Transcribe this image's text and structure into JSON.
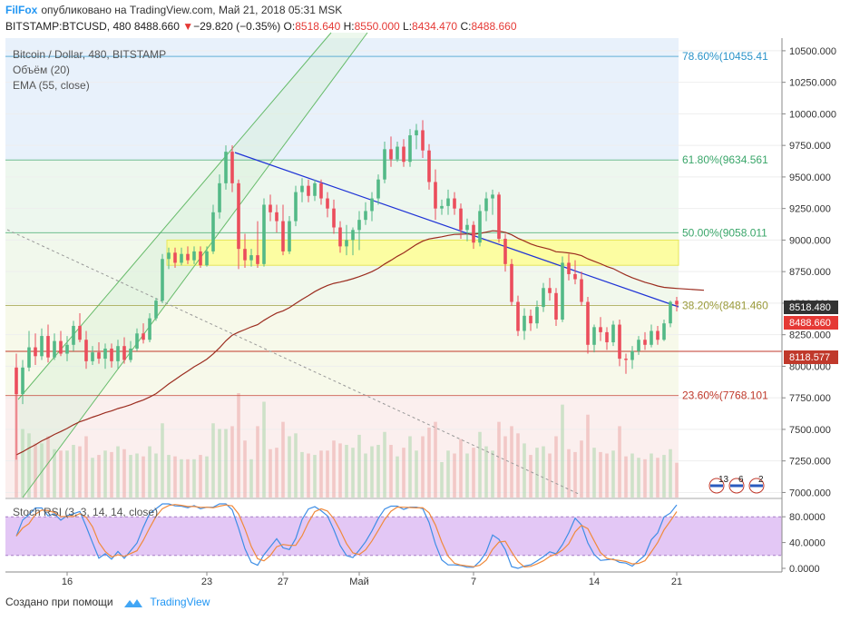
{
  "header": {
    "brand": "FilFox",
    "published": "опубликовано на TradingView.com, Май 21, 2018 05:31 MSK",
    "symbol": "BITSTAMP:BTCUSD, 480",
    "last": "8488.660",
    "change_arrow": "▼",
    "change": "−29.820 (−0.35%)",
    "open_label": "O:",
    "open": "8518.640",
    "high_label": "H:",
    "high": "8550.000",
    "low_label": "L:",
    "low": "8434.470",
    "close_label": "C:",
    "close": "8488.660"
  },
  "legend": {
    "main": "Bitcoin / Dollar, 480, BITSTAMP",
    "volume": "Объём (20)",
    "ema": "EMA (55, close)",
    "rsi": "Stoch RSI (3, 3, 14, 14, close)"
  },
  "footer": {
    "created": "Создано при помощи",
    "tv": "TradingView"
  },
  "badges": [
    "13",
    "6",
    "2"
  ],
  "chart_data": {
    "type": "candlestick",
    "y_ticks": [
      "10500.000",
      "10250.000",
      "10000.000",
      "9750.000",
      "9500.000",
      "9250.000",
      "9000.000",
      "8750.000",
      "8500.000",
      "8250.000",
      "8000.000",
      "7750.000",
      "7500.000",
      "7250.000",
      "7000.000"
    ],
    "ylim": [
      6960,
      10600
    ],
    "x_ticks": [
      "16",
      "23",
      "27",
      "Май",
      "7",
      "14",
      "21"
    ],
    "price_labels": [
      {
        "value": "8518.480",
        "price": 8518.48,
        "color": "#333333"
      },
      {
        "value": "8488.660",
        "price": 8488.66,
        "color": "#e53935"
      },
      {
        "value": "8118.577",
        "price": 8118.577,
        "color": "#c0392b"
      }
    ],
    "fib_levels": [
      {
        "label": "78.60%(10455.41",
        "price": 10455.41,
        "color": "#2a93c9"
      },
      {
        "label": "61.80%(9634.561",
        "price": 9634.561,
        "color": "#3aa66a"
      },
      {
        "label": "50.00%(9058.011",
        "price": 9058.011,
        "color": "#3aa66a"
      },
      {
        "label": "38.20%(8481.460",
        "price": 8481.46,
        "color": "#9a9a3a"
      },
      {
        "label": "23.60%(7768.101",
        "price": 7768.101,
        "color": "#c0392b"
      }
    ],
    "rsi_ticks": [
      "80.0000",
      "40.0000",
      "0.0000"
    ],
    "rsi_band": [
      20,
      80
    ],
    "candles": [
      [
        7990,
        8100,
        7260,
        7780
      ],
      [
        7780,
        8050,
        7700,
        7990
      ],
      [
        7990,
        8280,
        7960,
        8150
      ],
      [
        8150,
        8260,
        8010,
        8080
      ],
      [
        8080,
        8300,
        8050,
        8240
      ],
      [
        8240,
        8330,
        8030,
        8070
      ],
      [
        8070,
        8260,
        8050,
        8200
      ],
      [
        8200,
        8280,
        8080,
        8100
      ],
      [
        8100,
        8240,
        8040,
        8170
      ],
      [
        8170,
        8360,
        8120,
        8320
      ],
      [
        8320,
        8420,
        8190,
        8210
      ],
      [
        8210,
        8280,
        7980,
        8040
      ],
      [
        8040,
        8160,
        8010,
        8110
      ],
      [
        8110,
        8190,
        8020,
        8060
      ],
      [
        8060,
        8180,
        7980,
        8140
      ],
      [
        8140,
        8180,
        7990,
        8040
      ],
      [
        8040,
        8210,
        7980,
        8160
      ],
      [
        8160,
        8230,
        8020,
        8050
      ],
      [
        8050,
        8200,
        8030,
        8140
      ],
      [
        8140,
        8300,
        8120,
        8260
      ],
      [
        8260,
        8340,
        8180,
        8210
      ],
      [
        8210,
        8420,
        8190,
        8380
      ],
      [
        8380,
        8540,
        8360,
        8520
      ],
      [
        8520,
        8890,
        8500,
        8850
      ],
      [
        8850,
        8940,
        8770,
        8900
      ],
      [
        8900,
        8940,
        8780,
        8820
      ],
      [
        8820,
        8940,
        8800,
        8890
      ],
      [
        8890,
        8950,
        8810,
        8840
      ],
      [
        8840,
        8950,
        8810,
        8910
      ],
      [
        8910,
        8950,
        8780,
        8800
      ],
      [
        8800,
        8950,
        8790,
        8910
      ],
      [
        8910,
        9280,
        8890,
        9220
      ],
      [
        9220,
        9520,
        9170,
        9450
      ],
      [
        9450,
        9750,
        9400,
        9700
      ],
      [
        9700,
        9750,
        9380,
        9450
      ],
      [
        9450,
        9480,
        8770,
        8930
      ],
      [
        8930,
        9050,
        8780,
        8840
      ],
      [
        8840,
        8930,
        8790,
        8880
      ],
      [
        8880,
        9150,
        8780,
        8810
      ],
      [
        8810,
        9330,
        8790,
        9280
      ],
      [
        9280,
        9360,
        9150,
        9220
      ],
      [
        9220,
        9280,
        9060,
        9150
      ],
      [
        9150,
        9280,
        8880,
        8910
      ],
      [
        8910,
        9190,
        8890,
        9150
      ],
      [
        9150,
        9430,
        9110,
        9380
      ],
      [
        9380,
        9490,
        9300,
        9430
      ],
      [
        9430,
        9480,
        9300,
        9350
      ],
      [
        9350,
        9480,
        9310,
        9450
      ],
      [
        9450,
        9480,
        9280,
        9330
      ],
      [
        9330,
        9380,
        9180,
        9250
      ],
      [
        9250,
        9320,
        9050,
        9100
      ],
      [
        9100,
        9150,
        8900,
        8950
      ],
      [
        8950,
        9120,
        8880,
        9000
      ],
      [
        9000,
        9100,
        8880,
        9080
      ],
      [
        9080,
        9230,
        8920,
        9160
      ],
      [
        9160,
        9300,
        9120,
        9230
      ],
      [
        9230,
        9380,
        9150,
        9330
      ],
      [
        9330,
        9520,
        9280,
        9480
      ],
      [
        9480,
        9780,
        9450,
        9720
      ],
      [
        9720,
        9820,
        9580,
        9640
      ],
      [
        9640,
        9780,
        9620,
        9740
      ],
      [
        9740,
        9800,
        9580,
        9620
      ],
      [
        9620,
        9880,
        9580,
        9830
      ],
      [
        9830,
        9920,
        9720,
        9870
      ],
      [
        9870,
        9950,
        9650,
        9710
      ],
      [
        9710,
        9760,
        9400,
        9460
      ],
      [
        9460,
        9560,
        9160,
        9250
      ],
      [
        9250,
        9320,
        9200,
        9270
      ],
      [
        9270,
        9400,
        9200,
        9330
      ],
      [
        9330,
        9380,
        9200,
        9250
      ],
      [
        9250,
        9290,
        9010,
        9080
      ],
      [
        9080,
        9170,
        8990,
        9120
      ],
      [
        9120,
        9150,
        8930,
        8980
      ],
      [
        8980,
        9280,
        8950,
        9230
      ],
      [
        9230,
        9380,
        9150,
        9330
      ],
      [
        9330,
        9400,
        9200,
        9360
      ],
      [
        9360,
        9380,
        8980,
        9010
      ],
      [
        9010,
        9050,
        8750,
        8810
      ],
      [
        8810,
        8850,
        8480,
        8510
      ],
      [
        8510,
        8560,
        8240,
        8280
      ],
      [
        8280,
        8460,
        8210,
        8400
      ],
      [
        8400,
        8450,
        8280,
        8340
      ],
      [
        8340,
        8520,
        8300,
        8470
      ],
      [
        8470,
        8660,
        8430,
        8620
      ],
      [
        8620,
        8700,
        8520,
        8580
      ],
      [
        8580,
        8620,
        8320,
        8370
      ],
      [
        8370,
        8870,
        8350,
        8820
      ],
      [
        8820,
        8890,
        8680,
        8730
      ],
      [
        8730,
        8840,
        8650,
        8690
      ],
      [
        8690,
        8750,
        8480,
        8510
      ],
      [
        8510,
        8550,
        8100,
        8170
      ],
      [
        8170,
        8330,
        8110,
        8310
      ],
      [
        8310,
        8390,
        8200,
        8270
      ],
      [
        8270,
        8310,
        8130,
        8190
      ],
      [
        8190,
        8360,
        8160,
        8330
      ],
      [
        8330,
        8370,
        8000,
        8060
      ],
      [
        8060,
        8100,
        7940,
        8050
      ],
      [
        8050,
        8160,
        7980,
        8120
      ],
      [
        8120,
        8240,
        8090,
        8210
      ],
      [
        8210,
        8270,
        8130,
        8170
      ],
      [
        8170,
        8330,
        8150,
        8280
      ],
      [
        8280,
        8320,
        8170,
        8210
      ],
      [
        8210,
        8370,
        8200,
        8340
      ],
      [
        8340,
        8520,
        8310,
        8510
      ],
      [
        8518.64,
        8550,
        8434.47,
        8488.66
      ]
    ]
  }
}
